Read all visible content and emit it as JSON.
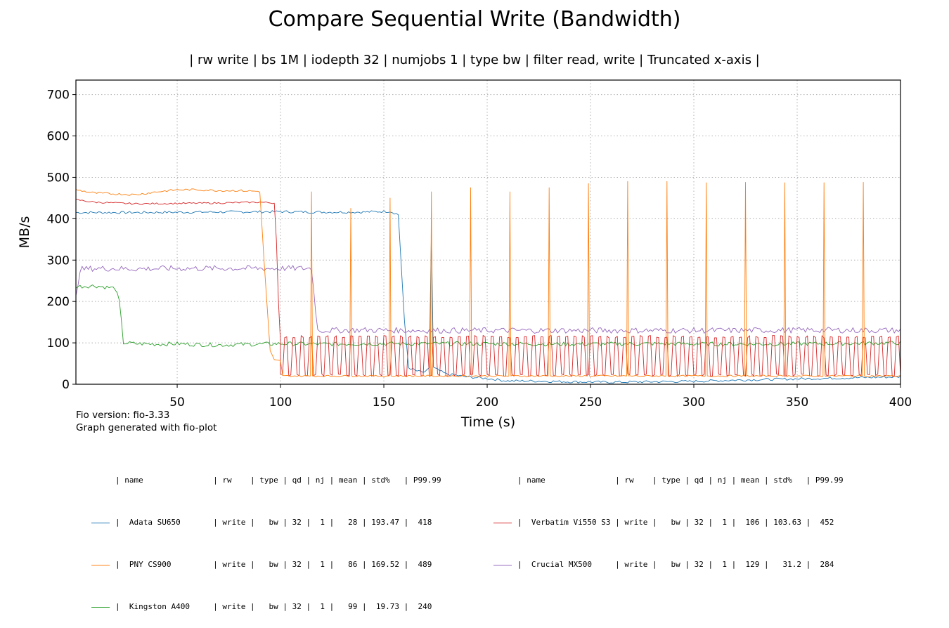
{
  "chart_data": {
    "type": "line",
    "title": "Compare Sequential Write (Bandwidth)",
    "subtitle": "| rw write | bs 1M | iodepth 32 | numjobs 1 | type bw | filter read, write | Truncated x-axis |",
    "xlabel": "Time (s)",
    "ylabel": "MB/s",
    "xlim": [
      1,
      400
    ],
    "ylim": [
      0,
      735
    ],
    "xticks": [
      "50",
      "100",
      "150",
      "200",
      "250",
      "300",
      "350",
      "400"
    ],
    "yticks": [
      "0",
      "100",
      "200",
      "300",
      "400",
      "500",
      "600",
      "700"
    ],
    "grid": true,
    "series": [
      {
        "name": "Adata SU650",
        "color": "#1f77b4",
        "points": [
          [
            1,
            415
          ],
          [
            30,
            415
          ],
          [
            60,
            416
          ],
          [
            100,
            417
          ],
          [
            120,
            416
          ],
          [
            140,
            416
          ],
          [
            153,
            418
          ],
          [
            157,
            410
          ],
          [
            160,
            150
          ],
          [
            162,
            40
          ],
          [
            166,
            32
          ],
          [
            170,
            28
          ],
          [
            172,
            40
          ],
          [
            173,
            370
          ],
          [
            174,
            40
          ],
          [
            180,
            25
          ],
          [
            190,
            18
          ],
          [
            200,
            14
          ],
          [
            210,
            8
          ],
          [
            220,
            8
          ],
          [
            240,
            6
          ],
          [
            260,
            5
          ],
          [
            280,
            6
          ],
          [
            300,
            7
          ],
          [
            320,
            10
          ],
          [
            340,
            12
          ],
          [
            360,
            14
          ],
          [
            380,
            16
          ],
          [
            400,
            18
          ]
        ]
      },
      {
        "name": "PNY CS900",
        "color": "#ff7f0e",
        "points": [
          [
            1,
            470
          ],
          [
            10,
            462
          ],
          [
            20,
            460
          ],
          [
            30,
            458
          ],
          [
            40,
            465
          ],
          [
            50,
            470
          ],
          [
            60,
            470
          ],
          [
            70,
            468
          ],
          [
            80,
            468
          ],
          [
            90,
            466
          ],
          [
            92,
            300
          ],
          [
            95,
            80
          ],
          [
            97,
            58
          ],
          [
            100,
            56
          ],
          [
            101,
            22
          ]
        ],
        "spikes": [
          115,
          134,
          153,
          173,
          192,
          211,
          230,
          249,
          268,
          287,
          306,
          325,
          344,
          363,
          382
        ],
        "spike_heights": [
          465,
          425,
          450,
          465,
          475,
          465,
          475,
          485,
          490,
          490,
          487,
          488,
          487,
          487,
          488
        ],
        "baseline": 20
      },
      {
        "name": "Kingston A400",
        "color": "#2ca02c",
        "points": [
          [
            1,
            236
          ],
          [
            10,
            238
          ],
          [
            20,
            232
          ],
          [
            22,
            200
          ],
          [
            24,
            100
          ],
          [
            30,
            98
          ],
          [
            40,
            97
          ],
          [
            50,
            98
          ],
          [
            60,
            96
          ],
          [
            70,
            95
          ],
          [
            80,
            96
          ],
          [
            90,
            97
          ],
          [
            100,
            98
          ],
          [
            120,
            97
          ],
          [
            140,
            98
          ],
          [
            160,
            98
          ],
          [
            180,
            98
          ],
          [
            200,
            98
          ],
          [
            240,
            97
          ],
          [
            280,
            98
          ],
          [
            320,
            97
          ],
          [
            360,
            98
          ],
          [
            400,
            100
          ]
        ]
      },
      {
        "name": "Verbatim Vi550 S3",
        "color": "#d62728",
        "points": [
          [
            1,
            446
          ],
          [
            10,
            440
          ],
          [
            30,
            436
          ],
          [
            50,
            437
          ],
          [
            70,
            438
          ],
          [
            90,
            440
          ],
          [
            97,
            438
          ],
          [
            98,
            350
          ],
          [
            99,
            200
          ],
          [
            100,
            100
          ]
        ],
        "osc_start": 100,
        "osc_end": 400,
        "osc_low": 22,
        "osc_high": 115
      },
      {
        "name": "Crucial MX500",
        "color": "#9467bd",
        "points": [
          [
            1,
            210
          ],
          [
            3,
            278
          ],
          [
            10,
            280
          ],
          [
            30,
            279
          ],
          [
            50,
            280
          ],
          [
            70,
            280
          ],
          [
            90,
            280
          ],
          [
            110,
            280
          ],
          [
            115,
            280
          ],
          [
            118,
            130
          ],
          [
            140,
            131
          ],
          [
            160,
            130
          ],
          [
            180,
            130
          ],
          [
            200,
            130
          ],
          [
            240,
            130
          ],
          [
            280,
            130
          ],
          [
            320,
            130
          ],
          [
            360,
            131
          ],
          [
            400,
            130
          ]
        ]
      }
    ]
  },
  "footnote": {
    "version": "Fio version: fio-3.33",
    "generated": "Graph generated with fio-plot"
  },
  "legend": {
    "header": "| name               | rw    | type | qd | nj | mean | std%   | P99.99",
    "rows": [
      "|  Adata SU650       | write |   bw | 32 |  1 |   28 | 193.47 |  418",
      "|  PNY CS900         | write |   bw | 32 |  1 |   86 | 169.52 |  489",
      "|  Kingston A400     | write |   bw | 32 |  1 |   99 |  19.73 |  240",
      "|  Verbatim Vi550 S3 | write |   bw | 32 |  1 |  106 | 103.63 |  452",
      "|  Crucial MX500     | write |   bw | 32 |  1 |  129 |   31.2 |  284"
    ]
  }
}
